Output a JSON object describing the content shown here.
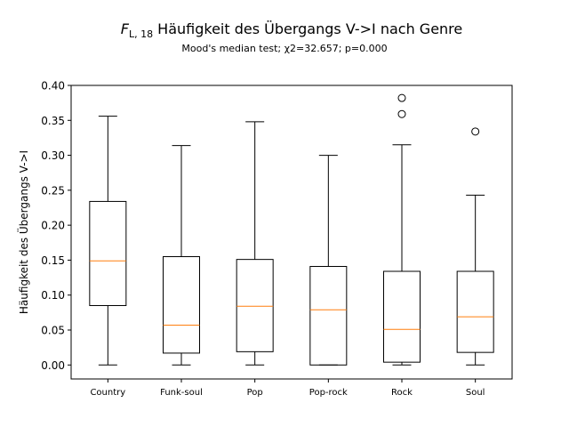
{
  "chart_data": {
    "type": "box",
    "title_symbol": "F",
    "title_subscript": "L, 18",
    "title_text": " Häufigkeit des Übergangs V->I nach Genre",
    "subtitle": "Mood's median test; χ2=32.657; p=0.000",
    "xlabel": "",
    "ylabel": "Häufigkeit des Übergangs V->I",
    "ylim": [
      -0.02,
      0.4
    ],
    "yticks": [
      "0.00",
      "0.05",
      "0.10",
      "0.15",
      "0.20",
      "0.25",
      "0.30",
      "0.35",
      "0.40"
    ],
    "ytick_values": [
      0.0,
      0.05,
      0.1,
      0.15,
      0.2,
      0.25,
      0.3,
      0.35,
      0.4
    ],
    "grid": false,
    "colors": {
      "box": "#000000",
      "median": "#ff7f0e"
    },
    "categories": [
      "Country",
      "Funk-soul",
      "Pop",
      "Pop-rock",
      "Rock",
      "Soul"
    ],
    "boxes": [
      {
        "whislo": 0.0,
        "q1": 0.085,
        "med": 0.149,
        "q3": 0.234,
        "whishi": 0.356,
        "fliers": []
      },
      {
        "whislo": 0.0,
        "q1": 0.017,
        "med": 0.057,
        "q3": 0.155,
        "whishi": 0.314,
        "fliers": []
      },
      {
        "whislo": 0.0,
        "q1": 0.019,
        "med": 0.084,
        "q3": 0.151,
        "whishi": 0.348,
        "fliers": []
      },
      {
        "whislo": 0.0,
        "q1": 0.0,
        "med": 0.079,
        "q3": 0.141,
        "whishi": 0.3,
        "fliers": []
      },
      {
        "whislo": 0.0,
        "q1": 0.004,
        "med": 0.051,
        "q3": 0.134,
        "whishi": 0.315,
        "fliers": [
          0.359,
          0.382
        ]
      },
      {
        "whislo": 0.0,
        "q1": 0.018,
        "med": 0.069,
        "q3": 0.134,
        "whishi": 0.243,
        "fliers": [
          0.334
        ]
      }
    ]
  }
}
